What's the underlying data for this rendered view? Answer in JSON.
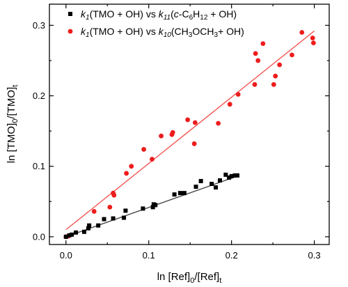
{
  "chart_data": {
    "type": "scatter",
    "xlabel": "ln [Ref]0/[Ref]t",
    "ylabel": "ln [TMO]0/[TMO]t",
    "xlim": [
      -0.02,
      0.318
    ],
    "ylim": [
      -0.011,
      0.33
    ],
    "x_ticks": [
      "0.0",
      "0.1",
      "0.2",
      "0.3"
    ],
    "y_ticks": [
      "0.0",
      "0.1",
      "0.2",
      "0.3"
    ],
    "legend_position": "top-left",
    "series": [
      {
        "name": "k1(TMO + OH) vs k11(c-C6H12 + OH)",
        "color": "#000000",
        "marker": "square",
        "fit": [
          [
            0.0,
            0.0
          ],
          [
            0.207,
            0.086
          ]
        ],
        "points": [
          [
            0.0,
            0.0
          ],
          [
            0.004,
            0.002
          ],
          [
            0.007,
            0.003
          ],
          [
            0.012,
            0.006
          ],
          [
            0.022,
            0.007
          ],
          [
            0.027,
            0.012
          ],
          [
            0.028,
            0.016
          ],
          [
            0.039,
            0.016
          ],
          [
            0.046,
            0.025
          ],
          [
            0.057,
            0.026
          ],
          [
            0.07,
            0.027
          ],
          [
            0.072,
            0.037
          ],
          [
            0.093,
            0.04
          ],
          [
            0.105,
            0.042
          ],
          [
            0.106,
            0.046
          ],
          [
            0.108,
            0.045
          ],
          [
            0.131,
            0.06
          ],
          [
            0.138,
            0.062
          ],
          [
            0.143,
            0.062
          ],
          [
            0.157,
            0.071
          ],
          [
            0.163,
            0.079
          ],
          [
            0.176,
            0.075
          ],
          [
            0.181,
            0.07
          ],
          [
            0.186,
            0.08
          ],
          [
            0.193,
            0.088
          ],
          [
            0.197,
            0.084
          ],
          [
            0.2,
            0.086
          ],
          [
            0.204,
            0.087
          ],
          [
            0.207,
            0.087
          ]
        ]
      },
      {
        "name": "k1(TMO + OH) vs k10(CH3OCH3 + OH)",
        "color": "#ee1c1c",
        "marker": "circle",
        "fit": [
          [
            0.0,
            0.01
          ],
          [
            0.3,
            0.292
          ]
        ],
        "points": [
          [
            0.0,
            0.0
          ],
          [
            0.003,
            0.001
          ],
          [
            0.034,
            0.036
          ],
          [
            0.053,
            0.042
          ],
          [
            0.057,
            0.062
          ],
          [
            0.058,
            0.059
          ],
          [
            0.073,
            0.09
          ],
          [
            0.079,
            0.1
          ],
          [
            0.094,
            0.124
          ],
          [
            0.104,
            0.11
          ],
          [
            0.115,
            0.143
          ],
          [
            0.128,
            0.145
          ],
          [
            0.129,
            0.148
          ],
          [
            0.147,
            0.166
          ],
          [
            0.155,
            0.132
          ],
          [
            0.156,
            0.162
          ],
          [
            0.184,
            0.161
          ],
          [
            0.198,
            0.188
          ],
          [
            0.208,
            0.202
          ],
          [
            0.228,
            0.216
          ],
          [
            0.229,
            0.26
          ],
          [
            0.232,
            0.25
          ],
          [
            0.238,
            0.274
          ],
          [
            0.251,
            0.216
          ],
          [
            0.253,
            0.228
          ],
          [
            0.258,
            0.244
          ],
          [
            0.273,
            0.258
          ],
          [
            0.285,
            0.29
          ],
          [
            0.298,
            0.282
          ],
          [
            0.299,
            0.275
          ]
        ]
      }
    ]
  },
  "legend": {
    "s1": {
      "k": "k",
      "sub1": "1",
      "mid": "(TMO + OH) vs ",
      "k2": "k",
      "sub2": "11",
      "tail1": "(",
      "ital": "c",
      "tail2": "-C",
      "sub3": "6",
      "tail3": "H",
      "sub4": "12",
      "tail4": " + OH)"
    },
    "s2": {
      "k": "k",
      "sub1": "1",
      "mid": "(TMO + OH) vs ",
      "k2": "k",
      "sub2": "10",
      "tail1": "(CH",
      "sub3": "3",
      "tail2": "OCH",
      "sub4": "3",
      "tail3": "+ OH)"
    }
  },
  "axis_titles": {
    "x": {
      "a": "ln [Ref]",
      "s1": "0",
      "b": "/[Ref]",
      "s2": "t"
    },
    "y": {
      "a": "ln [TMO]",
      "s1": "0",
      "b": "/[TMO]",
      "s2": "t"
    }
  }
}
